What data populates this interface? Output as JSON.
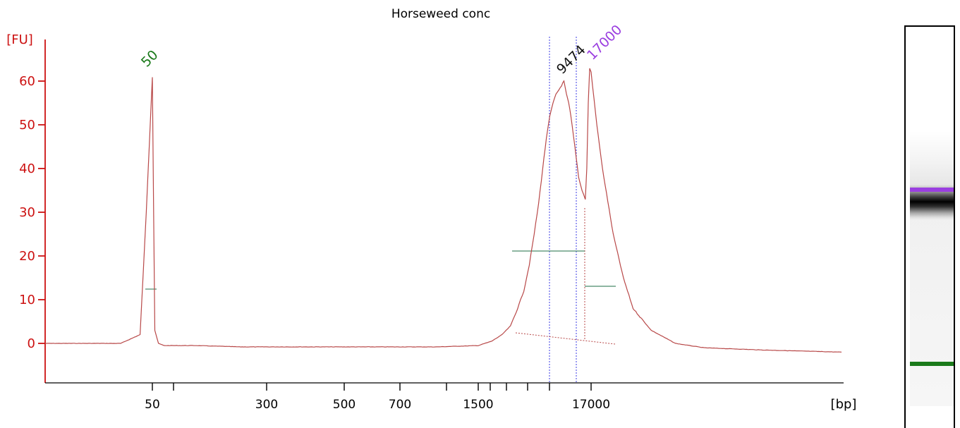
{
  "chart_data": {
    "type": "line",
    "title": "Horseweed conc",
    "ylabel": "[FU]",
    "xlabel": "[bp]",
    "ylim": [
      -9,
      70
    ],
    "ytick_labels": [
      "0",
      "10",
      "20",
      "30",
      "40",
      "50",
      "60"
    ],
    "xtick_labels": [
      "50",
      "300",
      "500",
      "700",
      "1500",
      "17000"
    ],
    "peak_labels": [
      "50",
      "9474",
      "17000"
    ],
    "colors": {
      "axis": "#cc1111",
      "trace": "#b84848",
      "lower_marker": "#1a7a1a",
      "upper_marker": "#9a3ee0",
      "peak_label": "#111111",
      "region_line": "#4a8a6a",
      "dotted_line": "#5a5ae8"
    },
    "series": [
      {
        "x_bp": [
          35,
          45,
          48,
          49,
          50,
          51,
          52,
          55,
          60,
          100,
          200,
          300,
          500,
          700,
          1000,
          1500,
          2000,
          2500,
          3000,
          3500,
          4000,
          4500,
          5000,
          5500,
          6000,
          6500,
          7000,
          7500,
          8000,
          8500,
          9000,
          9474,
          10000,
          10500,
          11000,
          12000,
          13000,
          14000,
          15000,
          15500,
          16000,
          16500,
          17000,
          17500,
          18000,
          19000,
          20000,
          21000,
          23000,
          26000,
          30000,
          40000,
          60000
        ],
        "y_fu": [
          0,
          0,
          2,
          30,
          61,
          30,
          3,
          0,
          -0.5,
          -0.5,
          -0.8,
          -0.8,
          -0.8,
          -0.8,
          -0.8,
          -0.5,
          0.5,
          2,
          4,
          8,
          12,
          18,
          25,
          32,
          40,
          47,
          52,
          55,
          57,
          58,
          59,
          60,
          57,
          55,
          52,
          45,
          38,
          35,
          33,
          40,
          55,
          63,
          62,
          50,
          40,
          25,
          15,
          8,
          3,
          0,
          -1,
          -1.5,
          -2
        ]
      }
    ],
    "markers": [
      {
        "name": "lower marker",
        "bp": 50,
        "color": "#1a7a1a"
      },
      {
        "name": "upper marker",
        "bp": 17000,
        "color": "#9a3ee0"
      }
    ]
  }
}
